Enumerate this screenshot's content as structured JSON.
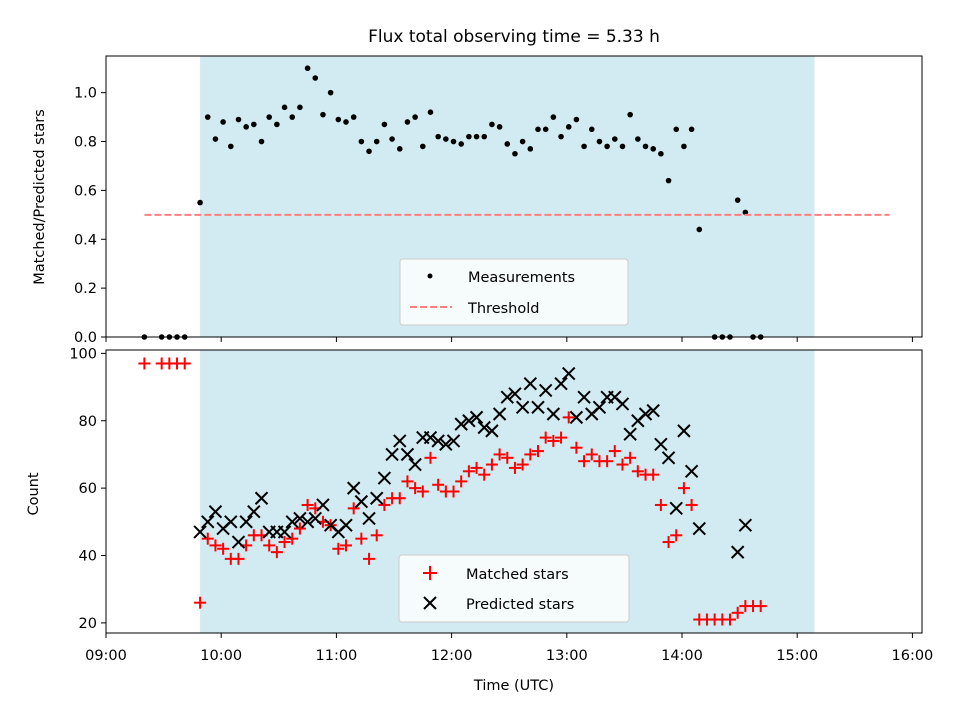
{
  "title": "Flux total observing time = 5.33 h",
  "colors": {
    "span": "#add8e6",
    "measurement": "#000000",
    "threshold": "#ff7f7f",
    "matched": "#ff0000",
    "predicted": "#000000"
  },
  "chart_data": [
    {
      "type": "scatter",
      "panel": "top",
      "ylabel": "Matched/Predicted stars",
      "ylim": [
        0,
        1.15
      ],
      "yticks": [
        0.0,
        0.2,
        0.4,
        0.6,
        0.8,
        1.0
      ],
      "ytick_labels": [
        "0.0",
        "0.2",
        "0.4",
        "0.6",
        "0.8",
        "1.0"
      ],
      "shaded_span": [
        "09:49",
        "15:09"
      ],
      "threshold": {
        "value": 0.5,
        "x": [
          "09:20",
          "15:48"
        ]
      },
      "legend": [
        "Measurements",
        "Threshold"
      ],
      "legend_position": "lower center",
      "series": [
        {
          "name": "Measurements",
          "marker": "dot",
          "points": [
            [
              "09:20",
              0.0
            ],
            [
              "09:29",
              0.0
            ],
            [
              "09:33",
              0.0
            ],
            [
              "09:37",
              0.0
            ],
            [
              "09:41",
              0.0
            ],
            [
              "09:49",
              0.55
            ],
            [
              "09:53",
              0.9
            ],
            [
              "09:57",
              0.81
            ],
            [
              "10:01",
              0.88
            ],
            [
              "10:05",
              0.78
            ],
            [
              "10:09",
              0.89
            ],
            [
              "10:13",
              0.86
            ],
            [
              "10:17",
              0.87
            ],
            [
              "10:21",
              0.8
            ],
            [
              "10:25",
              0.9
            ],
            [
              "10:29",
              0.87
            ],
            [
              "10:33",
              0.94
            ],
            [
              "10:37",
              0.9
            ],
            [
              "10:41",
              0.94
            ],
            [
              "10:45",
              1.1
            ],
            [
              "10:49",
              1.06
            ],
            [
              "10:53",
              0.91
            ],
            [
              "10:57",
              1.0
            ],
            [
              "11:01",
              0.89
            ],
            [
              "11:05",
              0.88
            ],
            [
              "11:09",
              0.9
            ],
            [
              "11:13",
              0.8
            ],
            [
              "11:17",
              0.76
            ],
            [
              "11:21",
              0.8
            ],
            [
              "11:25",
              0.87
            ],
            [
              "11:29",
              0.81
            ],
            [
              "11:33",
              0.77
            ],
            [
              "11:37",
              0.88
            ],
            [
              "11:41",
              0.9
            ],
            [
              "11:45",
              0.78
            ],
            [
              "11:49",
              0.92
            ],
            [
              "11:53",
              0.82
            ],
            [
              "11:57",
              0.81
            ],
            [
              "12:01",
              0.8
            ],
            [
              "12:05",
              0.79
            ],
            [
              "12:09",
              0.82
            ],
            [
              "12:13",
              0.82
            ],
            [
              "12:17",
              0.82
            ],
            [
              "12:21",
              0.87
            ],
            [
              "12:25",
              0.86
            ],
            [
              "12:29",
              0.79
            ],
            [
              "12:33",
              0.75
            ],
            [
              "12:37",
              0.8
            ],
            [
              "12:41",
              0.77
            ],
            [
              "12:45",
              0.85
            ],
            [
              "12:49",
              0.85
            ],
            [
              "12:53",
              0.9
            ],
            [
              "12:57",
              0.82
            ],
            [
              "13:01",
              0.86
            ],
            [
              "13:05",
              0.89
            ],
            [
              "13:09",
              0.78
            ],
            [
              "13:13",
              0.85
            ],
            [
              "13:17",
              0.8
            ],
            [
              "13:21",
              0.78
            ],
            [
              "13:25",
              0.81
            ],
            [
              "13:29",
              0.78
            ],
            [
              "13:33",
              0.91
            ],
            [
              "13:37",
              0.81
            ],
            [
              "13:41",
              0.78
            ],
            [
              "13:45",
              0.77
            ],
            [
              "13:49",
              0.75
            ],
            [
              "13:53",
              0.64
            ],
            [
              "13:57",
              0.85
            ],
            [
              "14:01",
              0.78
            ],
            [
              "14:05",
              0.85
            ],
            [
              "14:09",
              0.44
            ],
            [
              "14:17",
              0.0
            ],
            [
              "14:21",
              0.0
            ],
            [
              "14:25",
              0.0
            ],
            [
              "14:29",
              0.56
            ],
            [
              "14:33",
              0.51
            ],
            [
              "14:37",
              0.0
            ],
            [
              "14:41",
              0.0
            ]
          ]
        }
      ]
    },
    {
      "type": "scatter",
      "panel": "bottom",
      "xlabel": "Time (UTC)",
      "ylabel": "Count",
      "ylim": [
        17,
        101
      ],
      "yticks": [
        20,
        40,
        60,
        80,
        100
      ],
      "ytick_labels": [
        "20",
        "40",
        "60",
        "80",
        "100"
      ],
      "xlim": [
        "09:00",
        "16:05"
      ],
      "xtick_labels": [
        "09:00",
        "10:00",
        "11:00",
        "12:00",
        "13:00",
        "14:00",
        "15:00",
        "16:00"
      ],
      "shaded_span": [
        "09:49",
        "15:09"
      ],
      "legend": [
        "Matched stars",
        "Predicted stars"
      ],
      "legend_position": "lower center",
      "series": [
        {
          "name": "Matched stars",
          "marker": "plus",
          "points": [
            [
              "09:20",
              97
            ],
            [
              "09:29",
              97
            ],
            [
              "09:33",
              97
            ],
            [
              "09:37",
              97
            ],
            [
              "09:41",
              97
            ],
            [
              "09:49",
              26
            ],
            [
              "09:53",
              45
            ],
            [
              "09:57",
              43
            ],
            [
              "10:01",
              42
            ],
            [
              "10:05",
              39
            ],
            [
              "10:09",
              39
            ],
            [
              "10:13",
              43
            ],
            [
              "10:17",
              46
            ],
            [
              "10:21",
              46
            ],
            [
              "10:25",
              43
            ],
            [
              "10:29",
              41
            ],
            [
              "10:33",
              44
            ],
            [
              "10:37",
              45
            ],
            [
              "10:41",
              48
            ],
            [
              "10:45",
              55
            ],
            [
              "10:49",
              54
            ],
            [
              "10:53",
              50
            ],
            [
              "10:57",
              49
            ],
            [
              "11:01",
              42
            ],
            [
              "11:05",
              43
            ],
            [
              "11:09",
              54
            ],
            [
              "11:13",
              45
            ],
            [
              "11:17",
              39
            ],
            [
              "11:21",
              46
            ],
            [
              "11:25",
              55
            ],
            [
              "11:29",
              57
            ],
            [
              "11:33",
              57
            ],
            [
              "11:37",
              62
            ],
            [
              "11:41",
              60
            ],
            [
              "11:45",
              59
            ],
            [
              "11:49",
              69
            ],
            [
              "11:53",
              61
            ],
            [
              "11:57",
              59
            ],
            [
              "12:01",
              59
            ],
            [
              "12:05",
              62
            ],
            [
              "12:09",
              65
            ],
            [
              "12:13",
              66
            ],
            [
              "12:17",
              64
            ],
            [
              "12:21",
              67
            ],
            [
              "12:25",
              70
            ],
            [
              "12:29",
              69
            ],
            [
              "12:33",
              66
            ],
            [
              "12:37",
              67
            ],
            [
              "12:41",
              70
            ],
            [
              "12:45",
              71
            ],
            [
              "12:49",
              75
            ],
            [
              "12:53",
              74
            ],
            [
              "12:57",
              75
            ],
            [
              "13:01",
              81
            ],
            [
              "13:05",
              72
            ],
            [
              "13:09",
              68
            ],
            [
              "13:13",
              70
            ],
            [
              "13:17",
              68
            ],
            [
              "13:21",
              68
            ],
            [
              "13:25",
              71
            ],
            [
              "13:29",
              67
            ],
            [
              "13:33",
              69
            ],
            [
              "13:37",
              65
            ],
            [
              "13:41",
              64
            ],
            [
              "13:45",
              64
            ],
            [
              "13:49",
              55
            ],
            [
              "13:53",
              44
            ],
            [
              "13:57",
              46
            ],
            [
              "14:01",
              60
            ],
            [
              "14:05",
              55
            ],
            [
              "14:09",
              21
            ],
            [
              "14:13",
              21
            ],
            [
              "14:17",
              21
            ],
            [
              "14:21",
              21
            ],
            [
              "14:25",
              21
            ],
            [
              "14:29",
              23
            ],
            [
              "14:33",
              25
            ],
            [
              "14:37",
              25
            ],
            [
              "14:41",
              25
            ]
          ]
        },
        {
          "name": "Predicted stars",
          "marker": "x",
          "points": [
            [
              "09:49",
              47
            ],
            [
              "09:53",
              50
            ],
            [
              "09:57",
              53
            ],
            [
              "10:01",
              48
            ],
            [
              "10:05",
              50
            ],
            [
              "10:09",
              44
            ],
            [
              "10:13",
              50
            ],
            [
              "10:17",
              53
            ],
            [
              "10:21",
              57
            ],
            [
              "10:25",
              47
            ],
            [
              "10:29",
              47
            ],
            [
              "10:33",
              47
            ],
            [
              "10:37",
              50
            ],
            [
              "10:41",
              51
            ],
            [
              "10:45",
              50
            ],
            [
              "10:49",
              51
            ],
            [
              "10:53",
              55
            ],
            [
              "10:57",
              49
            ],
            [
              "11:01",
              47
            ],
            [
              "11:05",
              49
            ],
            [
              "11:09",
              60
            ],
            [
              "11:13",
              56
            ],
            [
              "11:17",
              51
            ],
            [
              "11:21",
              57
            ],
            [
              "11:25",
              63
            ],
            [
              "11:29",
              70
            ],
            [
              "11:33",
              74
            ],
            [
              "11:37",
              70
            ],
            [
              "11:41",
              67
            ],
            [
              "11:45",
              75
            ],
            [
              "11:49",
              75
            ],
            [
              "11:53",
              74
            ],
            [
              "11:57",
              73
            ],
            [
              "12:01",
              74
            ],
            [
              "12:05",
              79
            ],
            [
              "12:09",
              80
            ],
            [
              "12:13",
              81
            ],
            [
              "12:17",
              78
            ],
            [
              "12:21",
              77
            ],
            [
              "12:25",
              82
            ],
            [
              "12:29",
              87
            ],
            [
              "12:33",
              88
            ],
            [
              "12:37",
              84
            ],
            [
              "12:41",
              91
            ],
            [
              "12:45",
              84
            ],
            [
              "12:49",
              89
            ],
            [
              "12:53",
              82
            ],
            [
              "12:57",
              91
            ],
            [
              "13:01",
              94
            ],
            [
              "13:05",
              81
            ],
            [
              "13:09",
              87
            ],
            [
              "13:13",
              82
            ],
            [
              "13:17",
              84
            ],
            [
              "13:21",
              87
            ],
            [
              "13:25",
              87
            ],
            [
              "13:29",
              85
            ],
            [
              "13:33",
              76
            ],
            [
              "13:37",
              80
            ],
            [
              "13:41",
              82
            ],
            [
              "13:45",
              83
            ],
            [
              "13:49",
              73
            ],
            [
              "13:53",
              69
            ],
            [
              "13:57",
              54
            ],
            [
              "14:01",
              77
            ],
            [
              "14:05",
              65
            ],
            [
              "14:09",
              48
            ],
            [
              "14:29",
              41
            ],
            [
              "14:33",
              49
            ]
          ]
        }
      ]
    }
  ]
}
